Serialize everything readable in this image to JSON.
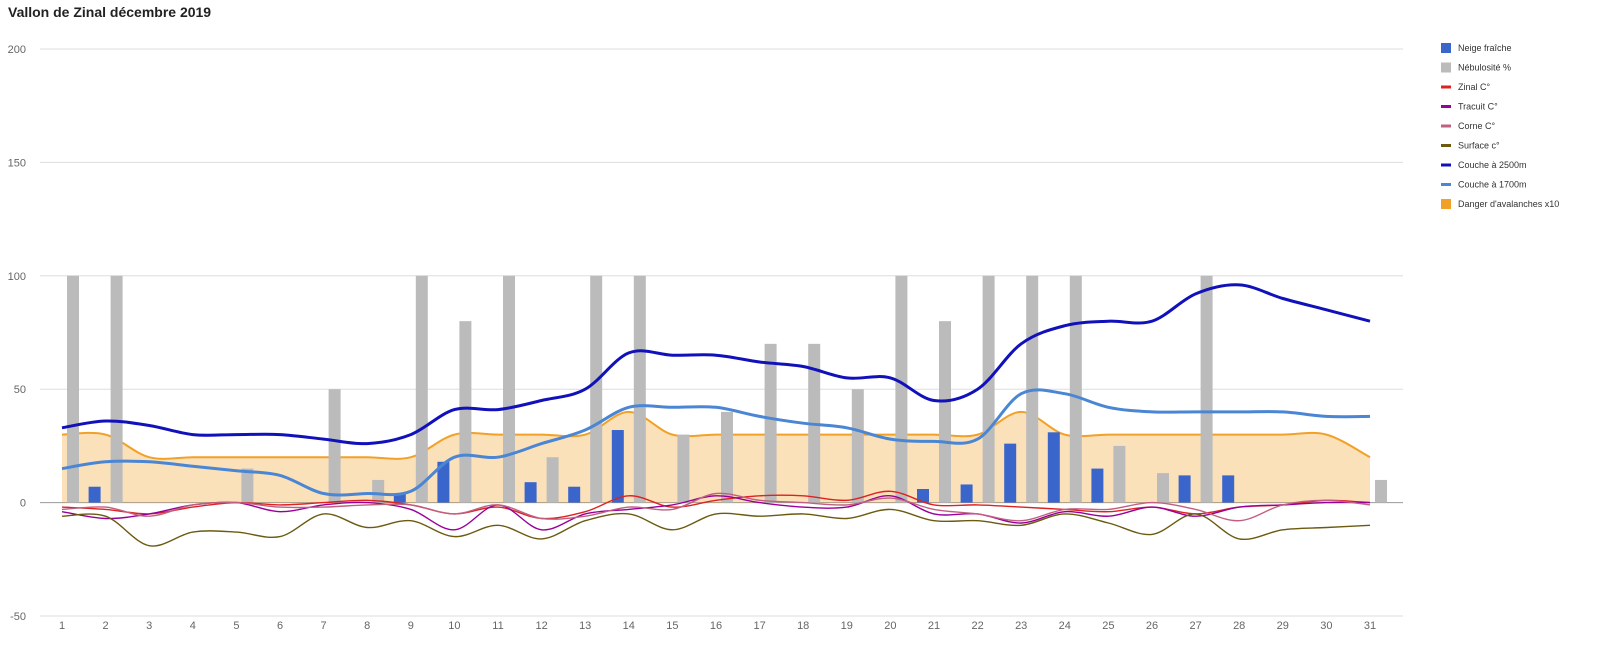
{
  "chart_data": {
    "type": "bar",
    "title": "Vallon de Zinal décembre 2019",
    "xlabel": "",
    "ylabel": "",
    "ylim": [
      -50,
      200
    ],
    "yticks": [
      -50,
      0,
      50,
      100,
      150,
      200
    ],
    "grid": true,
    "legend_position": "right",
    "categories": [
      "1",
      "2",
      "3",
      "4",
      "5",
      "6",
      "7",
      "8",
      "9",
      "10",
      "11",
      "12",
      "13",
      "14",
      "15",
      "16",
      "17",
      "18",
      "19",
      "20",
      "21",
      "22",
      "23",
      "24",
      "25",
      "26",
      "27",
      "28",
      "29",
      "30",
      "31"
    ],
    "series": [
      {
        "name": "Neige fraîche",
        "type": "bar",
        "color": "#3a66cc",
        "values": [
          0,
          7,
          0,
          0,
          0,
          0,
          0,
          0,
          4,
          18,
          0,
          9,
          7,
          32,
          0,
          0,
          0,
          0,
          0,
          0,
          6,
          8,
          26,
          31,
          15,
          0,
          12,
          12,
          0,
          0,
          0
        ]
      },
      {
        "name": "Nébulosité %",
        "type": "bar",
        "color": "#bbbbbb",
        "values": [
          100,
          100,
          0,
          0,
          15,
          0,
          50,
          10,
          100,
          80,
          100,
          20,
          100,
          100,
          30,
          40,
          70,
          70,
          50,
          100,
          80,
          100,
          100,
          100,
          25,
          13,
          100,
          0,
          0,
          0,
          10
        ]
      },
      {
        "name": "Zinal C°",
        "type": "line",
        "color": "#dd2222",
        "values": [
          -2,
          -3,
          -5,
          -2,
          0,
          -1,
          0,
          1,
          -1,
          -5,
          -2,
          -7,
          -4,
          3,
          -2,
          1,
          3,
          3,
          1,
          5,
          -1,
          -1,
          -2,
          -3,
          -4,
          -2,
          -5,
          -2,
          -1,
          1,
          0
        ]
      },
      {
        "name": "Tracuit C°",
        "type": "line",
        "color": "#990099",
        "values": [
          -4,
          -7,
          -5,
          -1,
          0,
          -4,
          -1,
          0,
          -3,
          -12,
          -1,
          -12,
          -5,
          -3,
          -1,
          3,
          0,
          -2,
          -2,
          3,
          -5,
          -5,
          -9,
          -4,
          -6,
          -2,
          -6,
          -2,
          -1,
          0,
          0
        ]
      },
      {
        "name": "Corne C°",
        "type": "line",
        "color": "#c06080",
        "values": [
          -3,
          -2,
          -6,
          -1,
          0,
          -2,
          -2,
          -1,
          -1,
          -5,
          -1,
          -7,
          -6,
          -2,
          -3,
          4,
          1,
          0,
          -1,
          2,
          -3,
          -5,
          -8,
          -3,
          -3,
          0,
          -3,
          -8,
          -1,
          1,
          -1
        ]
      },
      {
        "name": "Surface c°",
        "type": "line",
        "color": "#6b5a10",
        "values": [
          -6,
          -6,
          -19,
          -13,
          -13,
          -15,
          -5,
          -11,
          -8,
          -15,
          -10,
          -16,
          -8,
          -5,
          -12,
          -5,
          -6,
          -5,
          -7,
          -3,
          -8,
          -8,
          -10,
          -5,
          -9,
          -14,
          -5,
          -16,
          -12,
          -11,
          -10
        ]
      },
      {
        "name": "Couche à 2500m",
        "type": "line",
        "color": "#1111bb",
        "values": [
          33,
          36,
          34,
          30,
          30,
          30,
          28,
          26,
          30,
          41,
          41,
          45,
          50,
          66,
          65,
          65,
          62,
          60,
          55,
          55,
          45,
          50,
          70,
          78,
          80,
          80,
          92,
          96,
          90,
          85,
          80
        ]
      },
      {
        "name": "Couche à 1700m",
        "type": "line",
        "color": "#4a86d4",
        "values": [
          15,
          18,
          18,
          16,
          14,
          12,
          4,
          4,
          5,
          20,
          20,
          26,
          32,
          42,
          42,
          42,
          38,
          35,
          33,
          28,
          27,
          28,
          48,
          48,
          42,
          40,
          40,
          40,
          40,
          38,
          38
        ]
      },
      {
        "name": "Danger d'avalanches x10",
        "type": "area",
        "color": "#f2a128",
        "values": [
          30,
          30,
          20,
          20,
          20,
          20,
          20,
          20,
          20,
          30,
          30,
          30,
          30,
          40,
          30,
          30,
          30,
          30,
          30,
          30,
          30,
          30,
          40,
          30,
          30,
          30,
          30,
          30,
          30,
          30,
          20
        ]
      }
    ]
  }
}
